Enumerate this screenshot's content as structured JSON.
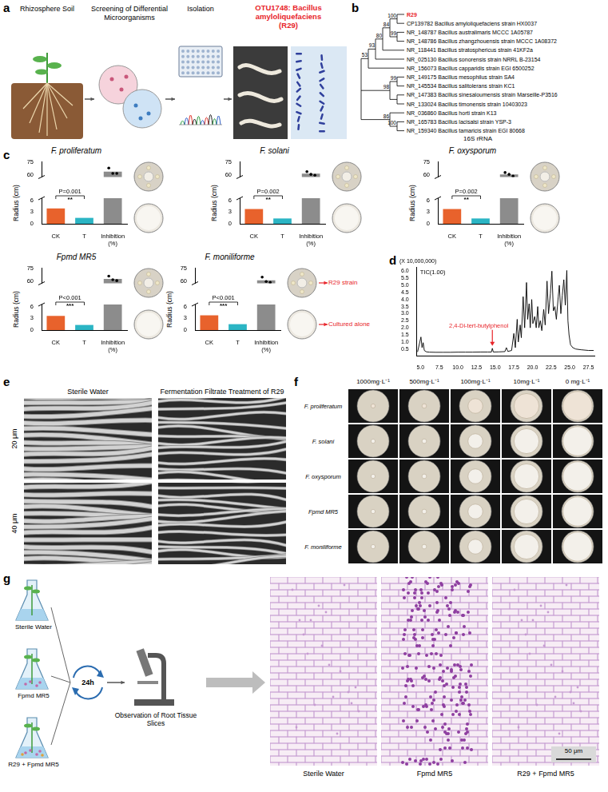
{
  "panel_labels": [
    "a",
    "b",
    "c",
    "d",
    "e",
    "f",
    "g"
  ],
  "panel_a": {
    "steps": [
      "Rhizosphere Soil",
      "Screening of Differential Microorganisms",
      "Isolation"
    ],
    "result": "OTU1748: Bacillus amyloliquefaciens",
    "result_strain": "(R29)",
    "result_color": "#e8242a"
  },
  "panel_b": {
    "gene": "16S rRNA",
    "tree": {
      "children": [
        {
          "support": 53,
          "children": [
            {
              "support": 93,
              "children": [
                {
                  "support": 80,
                  "children": [
                    {
                      "support": 84,
                      "children": [
                        {
                          "support": 100,
                          "children": [
                            {
                              "label": "R29",
                              "color": "#e8242a"
                            },
                            {
                              "label": "CP139782 Bacillus amyloliquefaciens strain HX0037"
                            }
                          ]
                        },
                        {
                          "support": 99,
                          "children": [
                            {
                              "label": "NR_148787 Bacillus australimaris MCCC 1A05787"
                            },
                            {
                              "label": "NR_148786 Bacillus zhangzhouensis strain MCCC 1A08372"
                            }
                          ]
                        }
                      ]
                    },
                    {
                      "label": "NR_118441 Bacillus stratosphericus strain 41KF2a"
                    }
                  ]
                },
                {
                  "label": "NR_025130 Bacillus sonorensis strain NRRL B-23154"
                }
              ]
            },
            {
              "label": "NR_156073 Bacillus capparidis strain EGI 6500252"
            }
          ]
        },
        {
          "support": 98,
          "children": [
            {
              "support": 99,
              "children": [
                {
                  "label": "NR_149175 Bacillus mesophilus strain SA4"
                },
                {
                  "label": "NR_145534 Bacillus salitolerans strain KC1"
                }
              ]
            },
            {
              "children": [
                {
                  "label": "NR_147383 Bacillus sinesaloumensis strain Marseille-P3516"
                },
                {
                  "label": "NR_133024 Bacillus timonensis strain 10403023"
                }
              ]
            }
          ]
        },
        {
          "support": 86,
          "children": [
            {
              "label": "NR_036860 Bacillus horti strain K13"
            },
            {
              "support": 100,
              "children": [
                {
                  "label": "NR_165783 Bacillus lacisalsi strain YSP-3"
                },
                {
                  "label": "NR_159340 Bacillus tamaricis strain EGI 80668"
                }
              ]
            }
          ]
        }
      ]
    }
  },
  "panel_c": {
    "image_labels": [
      "R29 strain",
      "Cultured alone"
    ],
    "label_color": "#e8242a"
  },
  "chart_data": [
    {
      "type": "bar",
      "title": "F. proliferatum",
      "y_label": "Radius (cm)",
      "categories": [
        "CK",
        "T",
        "Inhibition (%)"
      ],
      "values": [
        3.9,
        1.5,
        64
      ],
      "points": [
        null,
        null,
        [
          68,
          62,
          62
        ]
      ],
      "colors": [
        "#e8622c",
        "#2bb5c4",
        "#8c8c8c"
      ],
      "ylim": [
        0,
        75
      ],
      "yticks": [
        0,
        3,
        6,
        60,
        75
      ],
      "y_break": [
        6.5,
        58
      ],
      "p_value": "P=0.001",
      "significance": "**",
      "grid": false
    },
    {
      "type": "bar",
      "title": "F. solani",
      "y_label": "Radius (cm)",
      "categories": [
        "CK",
        "T",
        "Inhibition (%)"
      ],
      "values": [
        3.75,
        1.35,
        61.7
      ],
      "points": [
        null,
        null,
        [
          64,
          61,
          60
        ]
      ],
      "colors": [
        "#e8622c",
        "#2bb5c4",
        "#8c8c8c"
      ],
      "ylim": [
        0,
        75
      ],
      "yticks": [
        0,
        3,
        6,
        60,
        75
      ],
      "y_break": [
        6.5,
        58
      ],
      "p_value": "P=0.002",
      "significance": "**",
      "grid": false
    },
    {
      "type": "bar",
      "title": "F. oxysporum",
      "y_label": "Radius (cm)",
      "categories": [
        "CK",
        "T",
        "Inhibition (%)"
      ],
      "values": [
        3.75,
        1.35,
        61
      ],
      "points": [
        null,
        null,
        [
          63,
          61,
          59
        ]
      ],
      "colors": [
        "#e8622c",
        "#2bb5c4",
        "#8c8c8c"
      ],
      "ylim": [
        0,
        75
      ],
      "yticks": [
        0,
        3,
        6,
        60,
        75
      ],
      "y_break": [
        6.5,
        58
      ],
      "p_value": "P=0.002",
      "significance": "**",
      "grid": false
    },
    {
      "type": "bar",
      "title": "Fpmd MR5",
      "y_label": "Radius (cm)",
      "categories": [
        "CK",
        "T",
        "Inhibition (%)"
      ],
      "values": [
        3.6,
        1.3,
        63
      ],
      "points": [
        null,
        null,
        [
          66,
          62,
          61
        ]
      ],
      "colors": [
        "#e8622c",
        "#2bb5c4",
        "#8c8c8c"
      ],
      "ylim": [
        0,
        75
      ],
      "yticks": [
        0,
        3,
        6,
        60,
        75
      ],
      "y_break": [
        6.5,
        58
      ],
      "p_value": "P<0.001",
      "significance": "***",
      "grid": false
    },
    {
      "type": "bar",
      "title": "F. moniliforme",
      "y_label": "Radius (cm)",
      "categories": [
        "CK",
        "T",
        "Inhibition (%)"
      ],
      "values": [
        3.75,
        1.5,
        61.3
      ],
      "points": [
        null,
        null,
        [
          65,
          60,
          59
        ]
      ],
      "colors": [
        "#e8622c",
        "#2bb5c4",
        "#8c8c8c"
      ],
      "ylim": [
        0,
        75
      ],
      "yticks": [
        0,
        3,
        6,
        60,
        75
      ],
      "y_break": [
        6.5,
        58
      ],
      "p_value": "P<0.001",
      "significance": "***",
      "grid": false
    },
    {
      "type": "line",
      "y_label": "(X 10,000,000)",
      "x": [
        4.6,
        4.9,
        5.05,
        5.2,
        5.35,
        5.5,
        5.8,
        6.2,
        7,
        8,
        9,
        10,
        11,
        12,
        13,
        14,
        14.5,
        14.62,
        14.75,
        15.5,
        16.3,
        16.5,
        16.7,
        17.2,
        17.5,
        17.7,
        17.95,
        18.1,
        18.35,
        18.5,
        18.75,
        18.95,
        19.2,
        19.35,
        19.55,
        19.7,
        19.9,
        20.05,
        20.3,
        20.5,
        20.7,
        20.85,
        21.05,
        21.25,
        21.5,
        21.7,
        21.95,
        22.15,
        22.4,
        22.6,
        22.8,
        23,
        23.2,
        23.45,
        23.6,
        23.8,
        24,
        24.2,
        24.4,
        24.6,
        24.75,
        24.9,
        25.1,
        25.4,
        25.8,
        26.5,
        27.5,
        28.2
      ],
      "series": [
        {
          "name": "TIC(1.00)",
          "color": "#000000",
          "values": [
            0.3,
            1.0,
            1.35,
            0.6,
            0.95,
            0.4,
            0.3,
            0.28,
            0.27,
            0.27,
            0.27,
            0.28,
            0.28,
            0.28,
            0.29,
            0.29,
            0.29,
            0.55,
            0.29,
            0.3,
            0.32,
            0.6,
            0.33,
            0.4,
            1.6,
            0.6,
            2.6,
            1.0,
            2.2,
            1.3,
            4.2,
            2.0,
            5.2,
            2.6,
            3.7,
            2.0,
            4.0,
            2.3,
            2.8,
            2.0,
            3.5,
            2.0,
            2.5,
            1.8,
            3.3,
            2.2,
            5.3,
            3.0,
            4.4,
            6.0,
            3.2,
            3.5,
            2.6,
            4.2,
            5.0,
            3.0,
            4.3,
            5.4,
            3.6,
            6.05,
            2.5,
            1.5,
            0.8,
            0.6,
            0.5,
            0.45,
            0.4,
            0.4
          ]
        }
      ],
      "xlim": [
        4.5,
        28.3
      ],
      "xticks": [
        {
          "value": 5,
          "label": "5.0"
        },
        7.5,
        {
          "value": 10,
          "label": "10.0"
        },
        12.5,
        {
          "value": 15,
          "label": "15.0"
        },
        17.5,
        {
          "value": 20,
          "label": "20.0"
        },
        22.5,
        {
          "value": 25,
          "label": "25.0"
        },
        27.5
      ],
      "ylim": [
        0,
        6.3
      ],
      "yticks": [
        0.5,
        {
          "value": 1,
          "label": "1.0"
        },
        1.5,
        {
          "value": 2,
          "label": "2.0"
        },
        2.5,
        {
          "value": 3,
          "label": "3.0"
        },
        3.5,
        {
          "value": 4,
          "label": "4.0"
        },
        4.5,
        {
          "value": 5,
          "label": "5.0"
        },
        5.5,
        {
          "value": 6,
          "label": "6.0"
        }
      ],
      "legend": "upper left",
      "grid": false,
      "annotations": [
        {
          "text": "2,4-Di-tert-butylphenol",
          "x": 14.62,
          "color": "#e8242a"
        }
      ]
    }
  ],
  "panel_e": {
    "columns": [
      "Sterile Water",
      "Fermentation Filtrate Treatment of R29"
    ],
    "rows": [
      "20 μm",
      "40 μm"
    ]
  },
  "panel_f": {
    "columns": [
      "1000mg·L⁻¹",
      "500mg·L⁻¹",
      "100mg·L⁻¹",
      "10mg·L⁻¹",
      "0 mg·L⁻¹"
    ],
    "rows": [
      "F. proliferatum",
      "F. solani",
      "F. oxysporum",
      "Fpmd MR5",
      "F. moniliforme"
    ]
  },
  "panel_g": {
    "treatments": [
      "Sterile Water",
      "Fpmd MR5",
      "R29 + Fpmd MR5"
    ],
    "interval": "24h",
    "step": "Observation of Root Tissue Slices",
    "images": [
      "Sterile Water",
      "Fpmd MR5",
      "R29 + Fpmd MR5"
    ],
    "scale_bar": "50 μm"
  }
}
